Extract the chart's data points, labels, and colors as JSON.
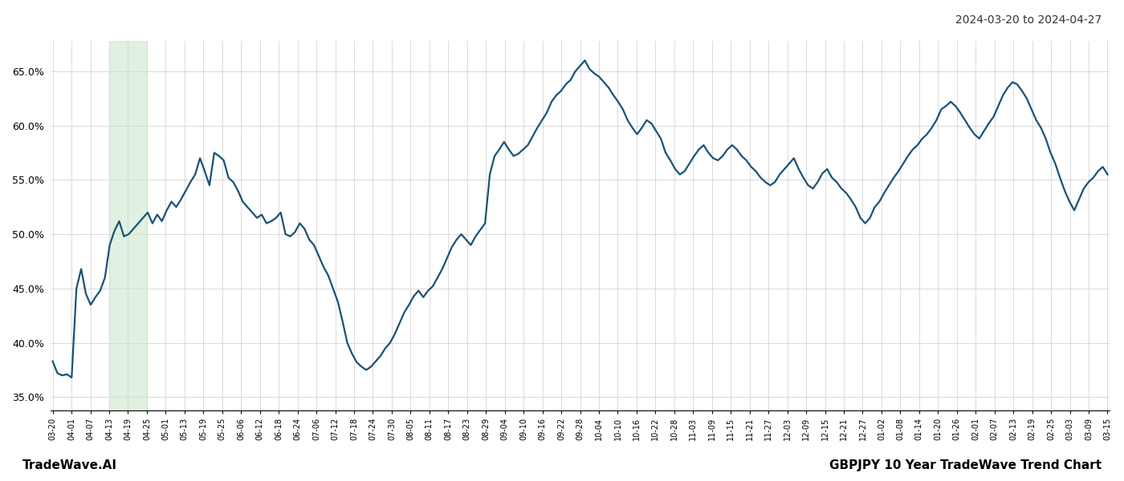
{
  "title_right": "2024-03-20 to 2024-04-27",
  "footer_left": "TradeWave.AI",
  "footer_right": "GBPJPY 10 Year TradeWave Trend Chart",
  "line_color": "#1a5276",
  "line_width": 1.6,
  "shading_color": "#c8e6c9",
  "shading_alpha": 0.55,
  "background_color": "#ffffff",
  "grid_color": "#cccccc",
  "ylim": [
    0.338,
    0.678
  ],
  "yticks": [
    0.35,
    0.4,
    0.45,
    0.5,
    0.55,
    0.6,
    0.65
  ],
  "ytick_labels": [
    "35.0%",
    "40.0%",
    "45.0%",
    "50.0%",
    "55.0%",
    "60.0%",
    "65.0%"
  ],
  "xtick_labels": [
    "03-20",
    "04-01",
    "04-07",
    "04-13",
    "04-19",
    "04-25",
    "05-01",
    "05-13",
    "05-19",
    "05-25",
    "06-06",
    "06-12",
    "06-18",
    "06-24",
    "07-06",
    "07-12",
    "07-18",
    "07-24",
    "07-30",
    "08-05",
    "08-11",
    "08-17",
    "08-23",
    "08-29",
    "09-04",
    "09-10",
    "09-16",
    "09-22",
    "09-28",
    "10-04",
    "10-10",
    "10-16",
    "10-22",
    "10-28",
    "11-03",
    "11-09",
    "11-15",
    "11-21",
    "11-27",
    "12-03",
    "12-09",
    "12-15",
    "12-21",
    "12-27",
    "01-02",
    "01-08",
    "01-14",
    "01-20",
    "01-26",
    "02-01",
    "02-07",
    "02-13",
    "02-19",
    "02-25",
    "03-03",
    "03-09",
    "03-15"
  ],
  "shading_xstart_label": "04-13",
  "shading_xend_label": "04-25",
  "values": [
    0.383,
    0.372,
    0.37,
    0.371,
    0.368,
    0.45,
    0.468,
    0.445,
    0.435,
    0.442,
    0.448,
    0.46,
    0.49,
    0.503,
    0.512,
    0.498,
    0.5,
    0.505,
    0.51,
    0.515,
    0.52,
    0.51,
    0.518,
    0.512,
    0.522,
    0.53,
    0.525,
    0.532,
    0.54,
    0.548,
    0.555,
    0.57,
    0.558,
    0.545,
    0.575,
    0.572,
    0.568,
    0.552,
    0.548,
    0.54,
    0.53,
    0.525,
    0.52,
    0.515,
    0.518,
    0.51,
    0.512,
    0.515,
    0.52,
    0.5,
    0.498,
    0.502,
    0.51,
    0.505,
    0.495,
    0.49,
    0.48,
    0.47,
    0.462,
    0.45,
    0.438,
    0.42,
    0.4,
    0.39,
    0.382,
    0.378,
    0.375,
    0.378,
    0.383,
    0.388,
    0.395,
    0.4,
    0.408,
    0.418,
    0.428,
    0.435,
    0.443,
    0.448,
    0.442,
    0.448,
    0.452,
    0.46,
    0.468,
    0.478,
    0.488,
    0.495,
    0.5,
    0.495,
    0.49,
    0.498,
    0.504,
    0.51,
    0.555,
    0.572,
    0.578,
    0.585,
    0.578,
    0.572,
    0.574,
    0.578,
    0.582,
    0.59,
    0.598,
    0.605,
    0.612,
    0.622,
    0.628,
    0.632,
    0.638,
    0.642,
    0.65,
    0.655,
    0.66,
    0.652,
    0.648,
    0.645,
    0.64,
    0.635,
    0.628,
    0.622,
    0.615,
    0.605,
    0.598,
    0.592,
    0.598,
    0.605,
    0.602,
    0.595,
    0.588,
    0.575,
    0.568,
    0.56,
    0.555,
    0.558,
    0.565,
    0.572,
    0.578,
    0.582,
    0.575,
    0.57,
    0.568,
    0.572,
    0.578,
    0.582,
    0.578,
    0.572,
    0.568,
    0.562,
    0.558,
    0.552,
    0.548,
    0.545,
    0.548,
    0.555,
    0.56,
    0.565,
    0.57,
    0.56,
    0.552,
    0.545,
    0.542,
    0.548,
    0.556,
    0.56,
    0.552,
    0.548,
    0.542,
    0.538,
    0.532,
    0.525,
    0.515,
    0.51,
    0.515,
    0.525,
    0.53,
    0.538,
    0.545,
    0.552,
    0.558,
    0.565,
    0.572,
    0.578,
    0.582,
    0.588,
    0.592,
    0.598,
    0.605,
    0.615,
    0.618,
    0.622,
    0.618,
    0.612,
    0.605,
    0.598,
    0.592,
    0.588,
    0.595,
    0.602,
    0.608,
    0.618,
    0.628,
    0.635,
    0.64,
    0.638,
    0.632,
    0.625,
    0.615,
    0.605,
    0.598,
    0.588,
    0.575,
    0.565,
    0.552,
    0.54,
    0.53,
    0.522,
    0.532,
    0.542,
    0.548,
    0.552,
    0.558,
    0.562,
    0.555
  ]
}
